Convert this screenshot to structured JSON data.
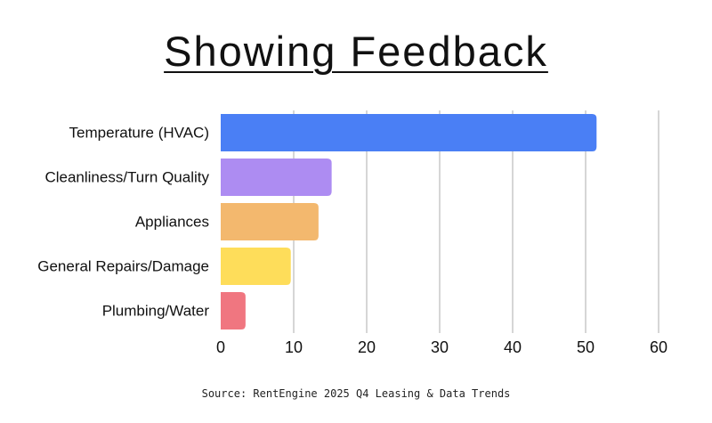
{
  "chart_data": {
    "type": "bar",
    "orientation": "horizontal",
    "title": "Showing Feedback",
    "source": "Source: RentEngine 2025 Q4 Leasing & Data Trends",
    "categories": [
      "Temperature (HVAC)",
      "Cleanliness/Turn Quality",
      "Appliances",
      "General Repairs/Damage",
      "Plumbing/Water"
    ],
    "values": [
      51.5,
      15.2,
      13.4,
      9.6,
      3.4
    ],
    "bar_colors": [
      "#4a7ff5",
      "#ad8cf2",
      "#f3b86e",
      "#fedd5a",
      "#f07680"
    ],
    "xlim": [
      0,
      60
    ],
    "xticks": [
      0,
      10,
      20,
      30,
      40,
      50,
      60
    ],
    "grid": true,
    "grid_color": "#c8c8c8",
    "legend": "none"
  }
}
